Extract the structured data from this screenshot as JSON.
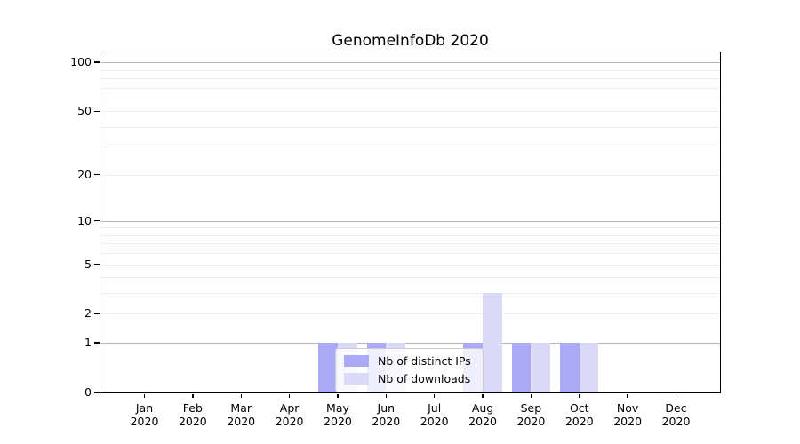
{
  "chart_data": {
    "type": "bar",
    "title": "GenomeInfoDb 2020",
    "categories": [
      "Jan 2020",
      "Feb 2020",
      "Mar 2020",
      "Apr 2020",
      "May 2020",
      "Jun 2020",
      "Jul 2020",
      "Aug 2020",
      "Sep 2020",
      "Oct 2020",
      "Nov 2020",
      "Dec 2020"
    ],
    "series": [
      {
        "name": "Nb of distinct IPs",
        "color": "#a9a9f4",
        "values": [
          0,
          0,
          0,
          0,
          1,
          1,
          0,
          1,
          1,
          1,
          0,
          0
        ]
      },
      {
        "name": "Nb of downloads",
        "color": "#dadaf8",
        "values": [
          0,
          0,
          0,
          0,
          1,
          1,
          0,
          3,
          1,
          1,
          0,
          0
        ]
      }
    ],
    "xlabel": "",
    "ylabel": "",
    "scale": "log1p",
    "ylim": [
      0,
      115
    ],
    "yticks": [
      0,
      1,
      2,
      5,
      10,
      20,
      50,
      100
    ],
    "major_gridlines": [
      1,
      10,
      100
    ],
    "minor_gridlines": [
      2,
      3,
      4,
      5,
      6,
      7,
      8,
      9,
      20,
      30,
      40,
      50,
      60,
      70,
      80,
      90
    ],
    "grid": true,
    "legend_position": "lower center inside"
  }
}
